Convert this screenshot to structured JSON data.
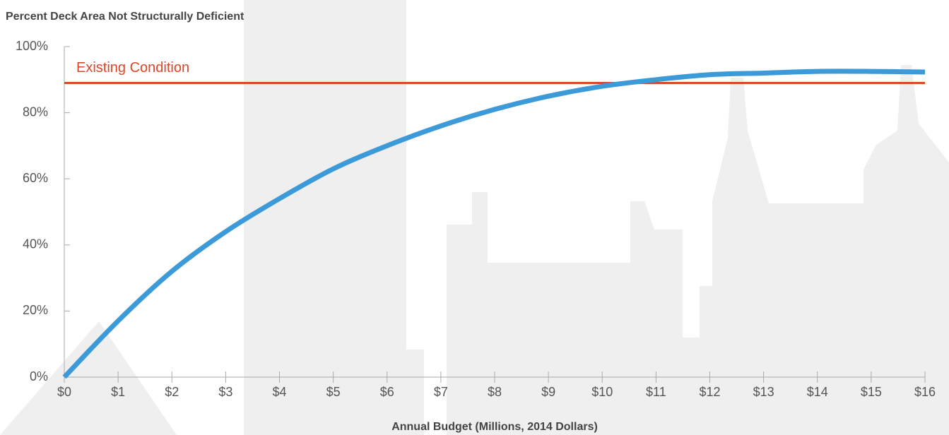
{
  "chart_data": {
    "type": "line",
    "title": "Percent Deck Area Not Structurally Deficient",
    "x_label": "Annual Budget (Millions, 2014 Dollars)",
    "x": [
      0,
      1,
      2,
      3,
      4,
      5,
      6,
      7,
      8,
      9,
      10,
      11,
      12,
      13,
      14,
      15,
      16
    ],
    "series": [
      {
        "name": null,
        "color": "#3d9ad9",
        "values": [
          0,
          17,
          32,
          44,
          54,
          63,
          70,
          76,
          81,
          85,
          88,
          90,
          91.5,
          92,
          92.5,
          92.5,
          92.3
        ]
      }
    ],
    "reference_line": {
      "value": 89,
      "label": "Existing Condition",
      "color": "#d9472b"
    },
    "xlim": [
      0,
      16
    ],
    "xticks": [
      {
        "value": 0,
        "label": "$0"
      },
      {
        "value": 1,
        "label": "$1"
      },
      {
        "value": 2,
        "label": "$2"
      },
      {
        "value": 3,
        "label": "$3"
      },
      {
        "value": 4,
        "label": "$4"
      },
      {
        "value": 5,
        "label": "$5"
      },
      {
        "value": 6,
        "label": "$6"
      },
      {
        "value": 7,
        "label": "$7"
      },
      {
        "value": 8,
        "label": "$8"
      },
      {
        "value": 9,
        "label": "$9"
      },
      {
        "value": 10,
        "label": "$10"
      },
      {
        "value": 11,
        "label": "$11"
      },
      {
        "value": 12,
        "label": "$12"
      },
      {
        "value": 13,
        "label": "$13"
      },
      {
        "value": 14,
        "label": "$14"
      },
      {
        "value": 15,
        "label": "$15"
      },
      {
        "value": 16,
        "label": "$16"
      }
    ],
    "ylim": [
      0,
      100
    ],
    "yticks": [
      {
        "value": 0,
        "label": "0%"
      },
      {
        "value": 20,
        "label": "20%"
      },
      {
        "value": 40,
        "label": "40%"
      },
      {
        "value": 60,
        "label": "60%"
      },
      {
        "value": 80,
        "label": "80%"
      },
      {
        "value": 100,
        "label": "100%"
      }
    ]
  }
}
